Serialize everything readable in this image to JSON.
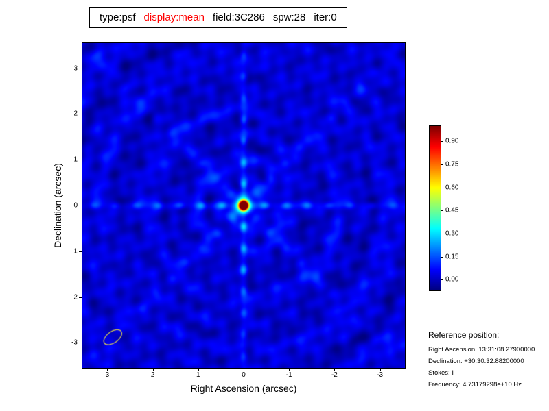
{
  "title": {
    "segments": [
      {
        "text": "type:psf",
        "color": "#000000"
      },
      {
        "text": "display:mean",
        "color": "#ff0000"
      },
      {
        "text": "field:3C286",
        "color": "#000000"
      },
      {
        "text": "spw:28",
        "color": "#000000"
      },
      {
        "text": "iter:0",
        "color": "#000000"
      }
    ]
  },
  "reference": {
    "heading": "Reference position:",
    "lines": [
      "Right Ascension: 13:31:08.27900000",
      "Declination: +30.30.32.88200000",
      "Stokes: I",
      "Frequency: 4.73179298e+10 Hz"
    ]
  },
  "chart_data": {
    "type": "heatmap",
    "title": "type:psf display:mean field:3C286 spw:28 iter:0",
    "xlabel": "Right Ascension (arcsec)",
    "ylabel": "Declination (arcsec)",
    "x_ticks": [
      "3",
      "2",
      "1",
      "0",
      "-1",
      "-2",
      "-3"
    ],
    "y_ticks": [
      "3",
      "2",
      "1",
      "0",
      "-1",
      "-2",
      "-3"
    ],
    "x_range": [
      3.55,
      -3.55
    ],
    "y_range": [
      -3.55,
      3.55
    ],
    "grid": false,
    "colormap": "jet",
    "value_range": [
      -0.07,
      1.0
    ],
    "colorbar_ticks": [
      "0.90",
      "0.75",
      "0.60",
      "0.45",
      "0.30",
      "0.15",
      "0.00"
    ],
    "legend_position": "right-colorbar",
    "peak": {
      "x": 0.0,
      "y": 0.0,
      "value": 1.0
    },
    "background_level": 0.02,
    "features": "blue PSF background with cyan sidelobe arms (vertical, horizontal, diagonal), ring ripples, dark red central peak with yellow-green halo",
    "beam_ellipse": {
      "x": 2.88,
      "y": -2.88,
      "major_arcsec": 0.45,
      "minor_arcsec": 0.25,
      "angle_deg": -35,
      "color": "#d8cc50"
    }
  }
}
